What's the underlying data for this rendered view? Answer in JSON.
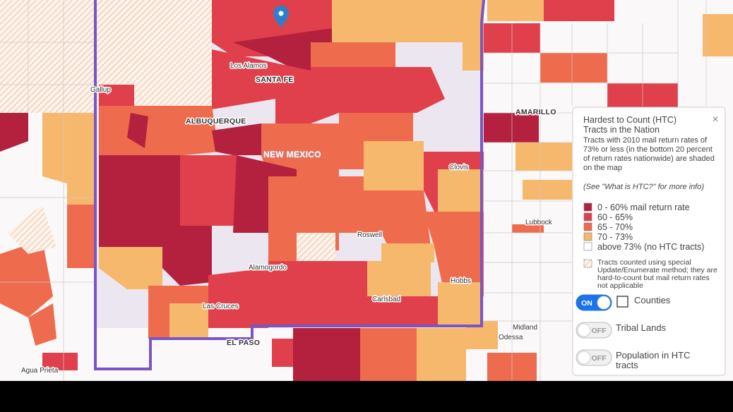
{
  "map": {
    "region_label": "NEW MEXICO",
    "cities": [
      "Los Alamos",
      "SANTA FE",
      "Gallup",
      "ALBUQUERQUE",
      "AMARILLO",
      "Clovis",
      "Lubbock",
      "Roswell",
      "Alamogordo",
      "Hobbs",
      "Carlsbad",
      "Las Cruces",
      "Midland",
      "Odessa",
      "EL PASO",
      "Agua Prieta"
    ]
  },
  "legend": {
    "title": "Hardest to Count (HTC) Tracts in the Nation",
    "close": "×",
    "description": "Tracts with 2010 mail return rates of 73% or less (in the bottom 20 percent of return rates nationwide) are shaded on the map",
    "note": "(See \"What is HTC?\" for more info)",
    "classes": [
      {
        "label": "0 - 60% mail return rate",
        "color": "#b3213f"
      },
      {
        "label": "60 - 65%",
        "color": "#e0404b"
      },
      {
        "label": "65 - 70%",
        "color": "#ee6b4d"
      },
      {
        "label": "70 - 73%",
        "color": "#f6b86c"
      },
      {
        "label": "above 73% (no HTC tracts)",
        "color": "#ffffff"
      }
    ],
    "special": "Tracts counted using special Update/Enumerate method; they are hard-to-count but mail return rates not applicable"
  },
  "toggles": [
    {
      "state": "ON",
      "label": "Counties"
    },
    {
      "state": "OFF",
      "label": "Tribal Lands"
    },
    {
      "state": "OFF",
      "label": "Population in HTC tracts"
    }
  ]
}
